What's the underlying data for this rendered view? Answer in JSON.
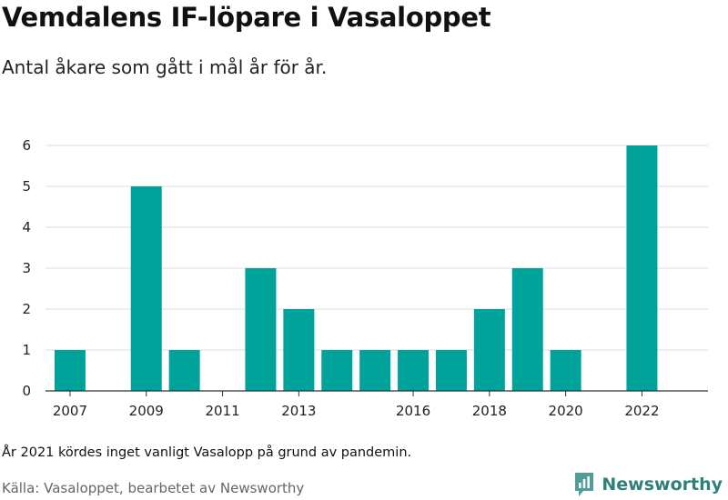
{
  "header": {
    "title": "Vemdalens IF-löpare i Vasaloppet",
    "subtitle": "Antal åkare som gått i mål år för år."
  },
  "footer": {
    "note": "År 2021 kördes inget vanligt Vasalopp på grund av pandemin.",
    "source": "Källa: Vasaloppet, bearbetet av Newsworthy",
    "brand": "Newsworthy",
    "brand_icon": "newsworthy-logo-icon"
  },
  "colors": {
    "bar": "#00a399",
    "grid": "#dcdcdc",
    "axis": "#333333",
    "brand": "#2f7f7a"
  },
  "chart_data": {
    "type": "bar",
    "categories": [
      "2007",
      "2008",
      "2009",
      "2010",
      "2011",
      "2012",
      "2013",
      "2014",
      "2015",
      "2016",
      "2017",
      "2018",
      "2019",
      "2020",
      "2021",
      "2022"
    ],
    "values": [
      1,
      0,
      5,
      1,
      0,
      3,
      2,
      1,
      1,
      1,
      1,
      2,
      3,
      1,
      0,
      6
    ],
    "x_tick_labels": [
      "2007",
      "2009",
      "2011",
      "2013",
      "2016",
      "2018",
      "2020",
      "2022"
    ],
    "y_ticks": [
      0,
      1,
      2,
      3,
      4,
      5,
      6
    ],
    "ylim": [
      0,
      6
    ],
    "xlabel": "",
    "ylabel": "",
    "grid": true,
    "legend": "none"
  }
}
